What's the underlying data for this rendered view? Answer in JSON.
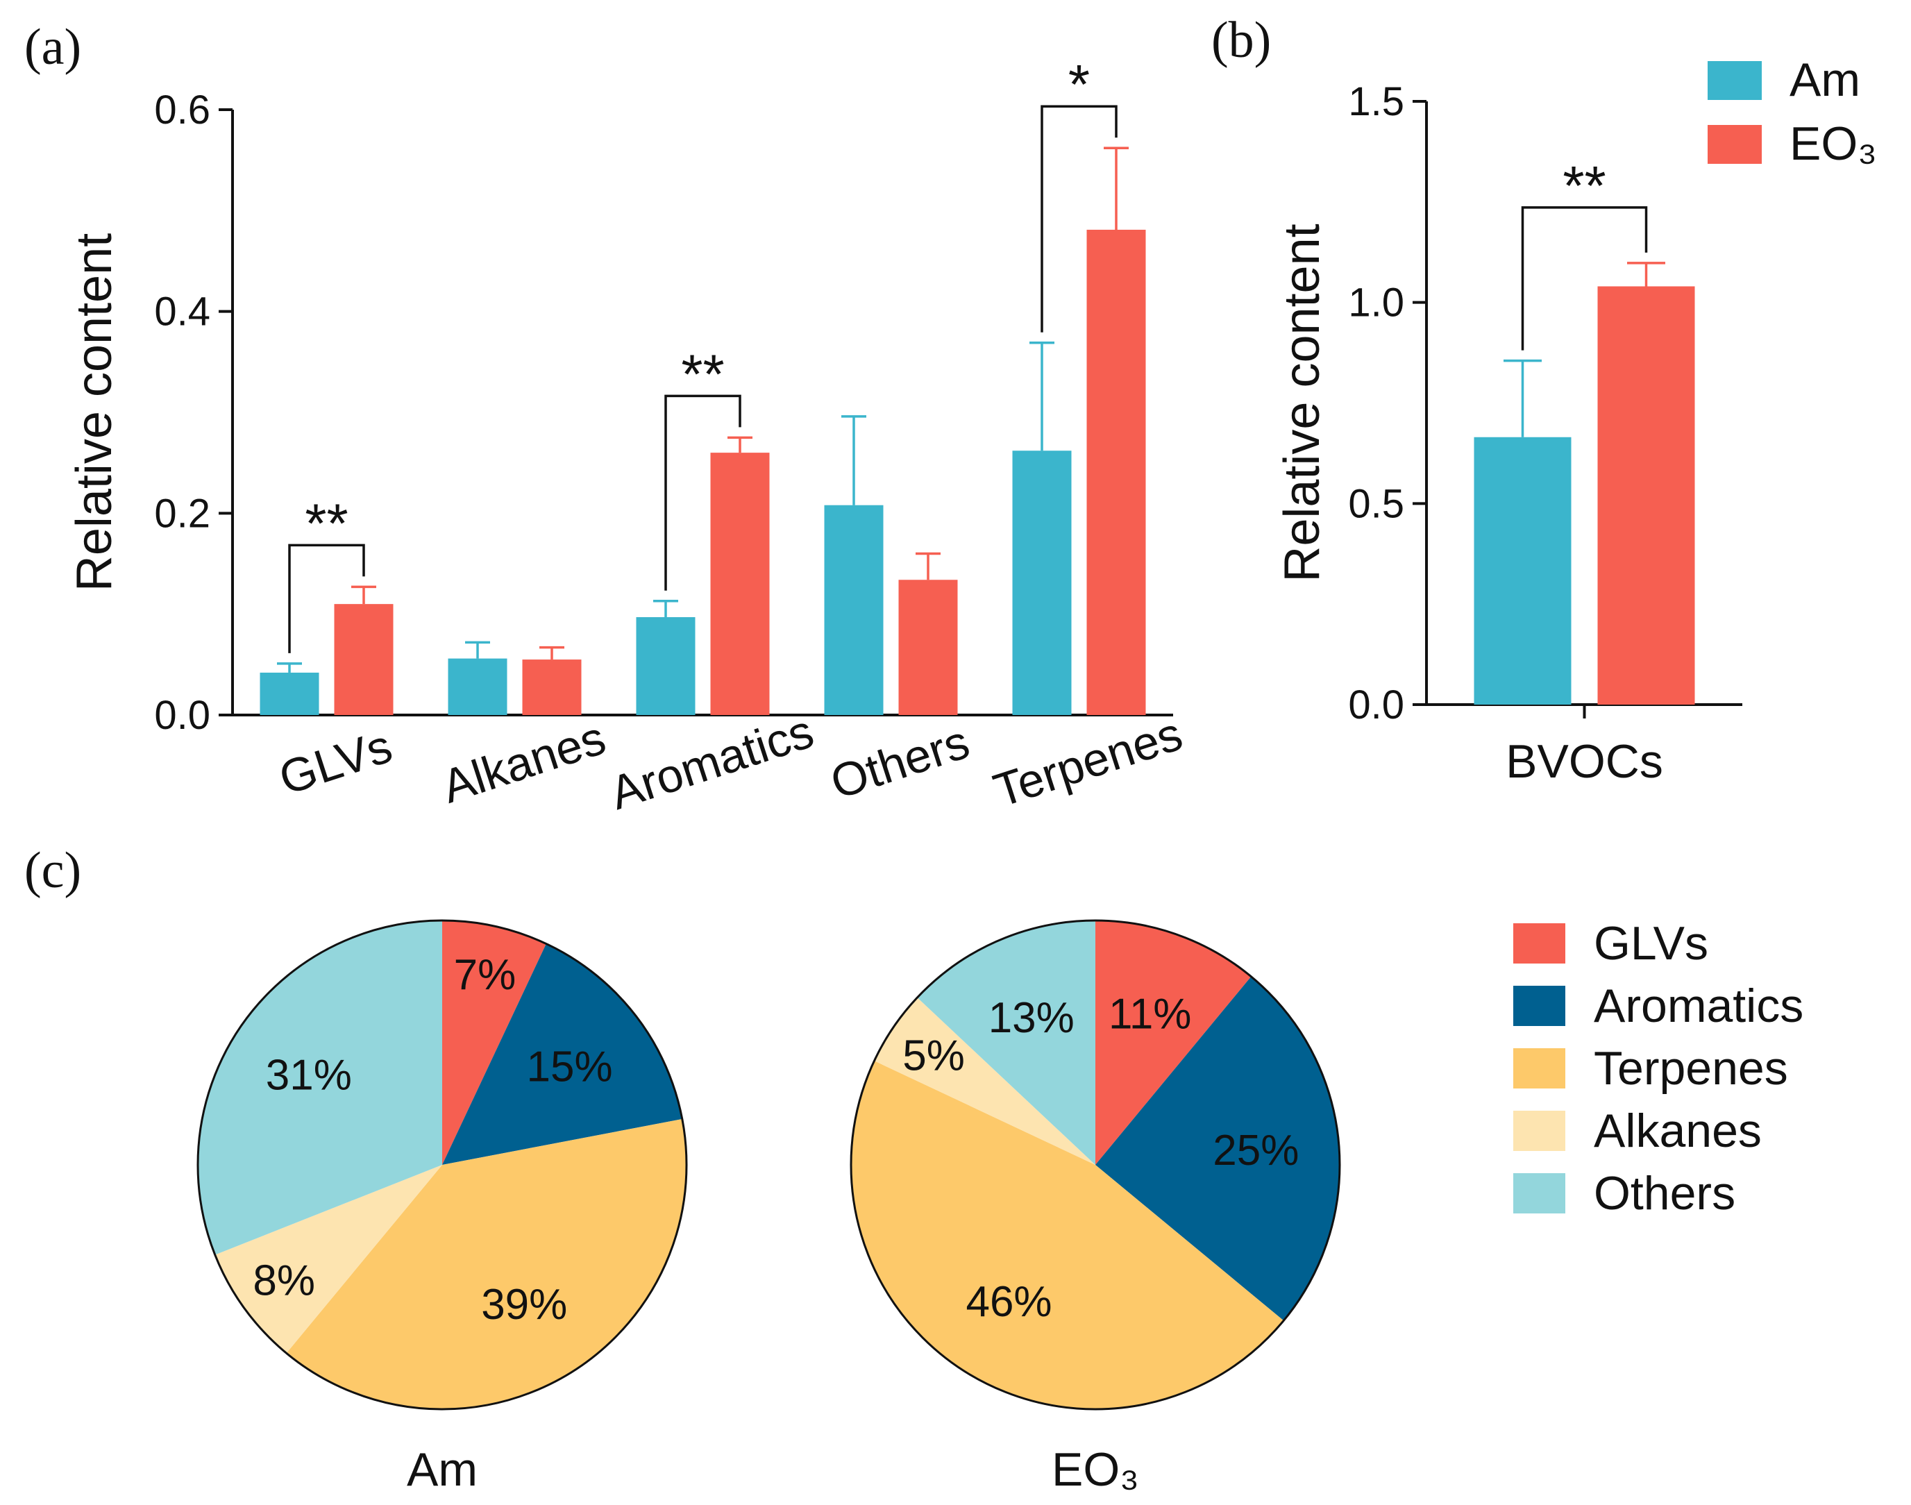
{
  "colors": {
    "am": "#3bb5cc",
    "eo3": "#f65f51",
    "glvs": "#f65f51",
    "aromatics": "#006090",
    "terpenes": "#fdc96a",
    "alkanes": "#fde4b0",
    "others": "#93d6dc",
    "axis": "#111111"
  },
  "legend": {
    "groups": [
      {
        "label": "Am",
        "color_key": "am"
      },
      {
        "label": "EO₃",
        "color_key": "eo3"
      }
    ]
  },
  "chart_data": [
    {
      "id": "a",
      "panel_label": "(a)",
      "type": "bar",
      "ylabel": "Relative content",
      "xlabel": "",
      "ylim": [
        0,
        0.6
      ],
      "yticks": [
        "0.0",
        "0.2",
        "0.4",
        "0.6"
      ],
      "categories": [
        "GLVs",
        "Alkanes",
        "Aromatics",
        "Others",
        "Terpenes"
      ],
      "series": [
        {
          "name": "Am",
          "color_key": "am",
          "values": [
            0.042,
            0.056,
            0.097,
            0.208,
            0.262
          ],
          "errors": [
            0.009,
            0.016,
            0.016,
            0.088,
            0.107
          ]
        },
        {
          "name": "EO₃",
          "color_key": "eo3",
          "values": [
            0.11,
            0.055,
            0.26,
            0.134,
            0.481
          ],
          "errors": [
            0.017,
            0.012,
            0.015,
            0.026,
            0.081
          ]
        }
      ],
      "significance": [
        {
          "category_index": 0,
          "label": "**"
        },
        {
          "category_index": 2,
          "label": "**"
        },
        {
          "category_index": 4,
          "label": "*"
        }
      ]
    },
    {
      "id": "b",
      "panel_label": "(b)",
      "type": "bar",
      "ylabel": "Relative content",
      "xlabel": "",
      "ylim": [
        0,
        1.5
      ],
      "yticks": [
        "0.0",
        "0.5",
        "1.0",
        "1.5"
      ],
      "categories": [
        "BVOCs"
      ],
      "series": [
        {
          "name": "Am",
          "color_key": "am",
          "values": [
            0.665
          ],
          "errors": [
            0.19
          ]
        },
        {
          "name": "EO₃",
          "color_key": "eo3",
          "values": [
            1.04
          ],
          "errors": [
            0.058
          ]
        }
      ],
      "significance": [
        {
          "category_index": 0,
          "label": "**"
        }
      ]
    },
    {
      "id": "c",
      "panel_label": "(c)",
      "type": "pie",
      "legend": {
        "entries": [
          {
            "label": "GLVs",
            "color_key": "glvs"
          },
          {
            "label": "Aromatics",
            "color_key": "aromatics"
          },
          {
            "label": "Terpenes",
            "color_key": "terpenes"
          },
          {
            "label": "Alkanes",
            "color_key": "alkanes"
          },
          {
            "label": "Others",
            "color_key": "others"
          }
        ]
      },
      "pies": [
        {
          "title": "Am",
          "slices": [
            {
              "label": "GLVs",
              "value": 7,
              "text": "7%"
            },
            {
              "label": "Aromatics",
              "value": 15,
              "text": "15%"
            },
            {
              "label": "Terpenes",
              "value": 39,
              "text": "39%"
            },
            {
              "label": "Alkanes",
              "value": 8,
              "text": "8%"
            },
            {
              "label": "Others",
              "value": 31,
              "text": "31%"
            }
          ]
        },
        {
          "title": "EO₃",
          "slices": [
            {
              "label": "GLVs",
              "value": 11,
              "text": "11%"
            },
            {
              "label": "Aromatics",
              "value": 25,
              "text": "25%"
            },
            {
              "label": "Terpenes",
              "value": 46,
              "text": "46%"
            },
            {
              "label": "Alkanes",
              "value": 5,
              "text": "5%"
            },
            {
              "label": "Others",
              "value": 13,
              "text": "13%"
            }
          ]
        }
      ]
    }
  ]
}
